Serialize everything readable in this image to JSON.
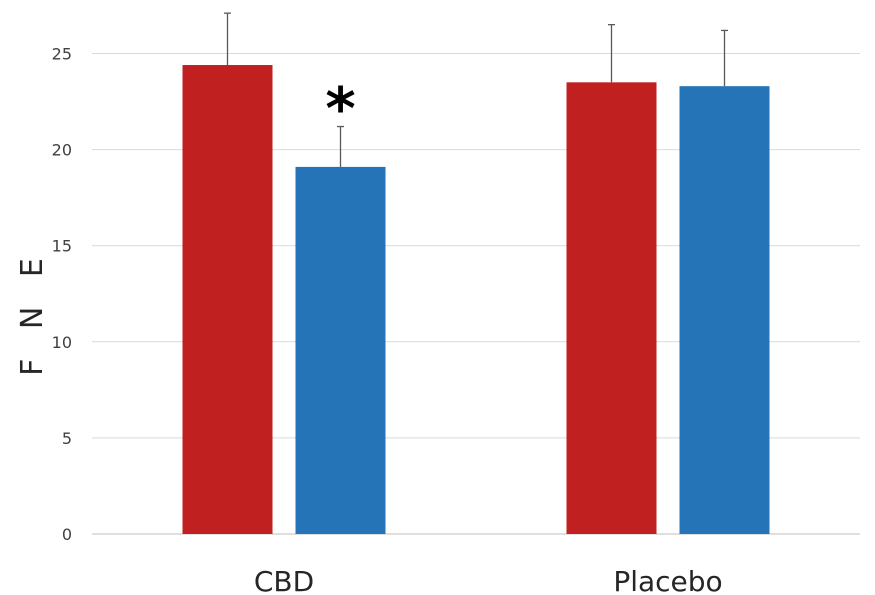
{
  "chart_data": {
    "type": "bar",
    "title": "",
    "xlabel": "",
    "ylabel": "F N E",
    "ylim": [
      0,
      25
    ],
    "yticks": [
      0,
      5,
      10,
      15,
      20,
      25
    ],
    "grid": true,
    "legend": "none",
    "categories": [
      "CBD",
      "Placebo"
    ],
    "series": [
      {
        "color": "#C0201F",
        "values": [
          24.4,
          23.5
        ],
        "errors": [
          2.7,
          3.0
        ]
      },
      {
        "color": "#2574B8",
        "values": [
          19.1,
          23.3
        ],
        "errors": [
          2.1,
          2.9
        ]
      }
    ],
    "annotations": [
      {
        "text": "*",
        "category": "CBD",
        "series_index": 1
      }
    ]
  }
}
